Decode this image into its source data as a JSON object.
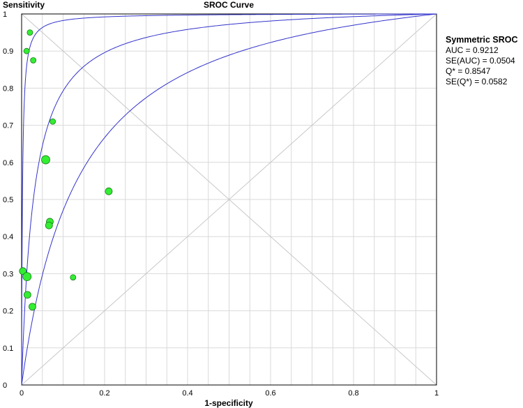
{
  "chart_data": {
    "type": "scatter",
    "title": "SROC Curve",
    "xlabel": "1-specificity",
    "ylabel": "Sensitivity",
    "xlim": [
      0,
      1
    ],
    "ylim": [
      0,
      1
    ],
    "x_ticks": [
      "0",
      "0.2",
      "0.4",
      "0.6",
      "0.8",
      "1"
    ],
    "y_ticks": [
      "0",
      "0.1",
      "0.2",
      "0.3",
      "0.4",
      "0.5",
      "0.6",
      "0.7",
      "0.8",
      "0.9",
      "1"
    ],
    "grid": true,
    "points": [
      {
        "x": 0.02,
        "y": 0.95,
        "size": "small"
      },
      {
        "x": 0.012,
        "y": 0.9,
        "size": "small"
      },
      {
        "x": 0.028,
        "y": 0.875,
        "size": "small"
      },
      {
        "x": 0.075,
        "y": 0.71,
        "size": "small"
      },
      {
        "x": 0.058,
        "y": 0.607,
        "size": "large"
      },
      {
        "x": 0.21,
        "y": 0.522,
        "size": "medium"
      },
      {
        "x": 0.068,
        "y": 0.44,
        "size": "medium"
      },
      {
        "x": 0.066,
        "y": 0.43,
        "size": "medium"
      },
      {
        "x": 0.003,
        "y": 0.307,
        "size": "medium"
      },
      {
        "x": 0.013,
        "y": 0.292,
        "size": "large"
      },
      {
        "x": 0.124,
        "y": 0.29,
        "size": "small"
      },
      {
        "x": 0.014,
        "y": 0.243,
        "size": "medium"
      },
      {
        "x": 0.026,
        "y": 0.211,
        "size": "medium"
      }
    ],
    "sroc_curves": [
      {
        "diagnostic_odds_ratio": 500
      },
      {
        "diagnostic_odds_ratio": 34.4
      },
      {
        "diagnostic_odds_ratio": 8
      }
    ],
    "reference_lines": [
      "diagonal",
      "anti-diagonal"
    ],
    "colors": {
      "curve": "#3333cc",
      "point_fill": "#33ee33",
      "point_stroke": "#1a7a1a",
      "grid": "#d9d9d9"
    }
  },
  "stats": {
    "heading": "Symmetric SROC",
    "auc": "AUC = 0.9212",
    "se_auc": "SE(AUC) = 0.0504",
    "q_star": "Q* = 0.8547",
    "se_q_star": "SE(Q*) = 0.0582"
  }
}
